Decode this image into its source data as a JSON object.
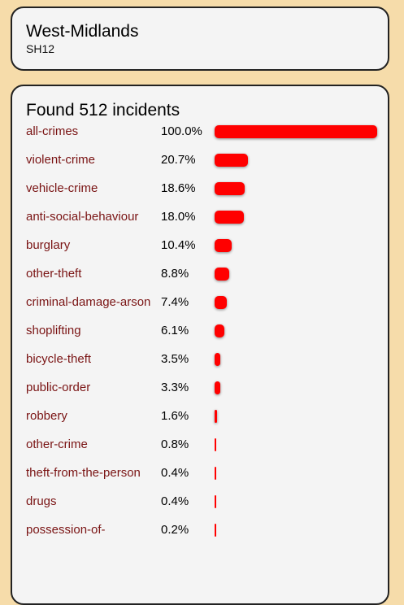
{
  "header": {
    "title": "West-Midlands",
    "subtitle": "SH12"
  },
  "results": {
    "found_text": "Found 512 incidents",
    "bar_color": "#ff0000",
    "link_color": "#7a1414",
    "items": [
      {
        "category": "all-crimes",
        "percent_text": "100.0%",
        "percent": 100.0
      },
      {
        "category": "violent-crime",
        "percent_text": "20.7%",
        "percent": 20.7
      },
      {
        "category": "vehicle-crime",
        "percent_text": "18.6%",
        "percent": 18.6
      },
      {
        "category": "anti-social-behaviour",
        "percent_text": "18.0%",
        "percent": 18.0
      },
      {
        "category": "burglary",
        "percent_text": "10.4%",
        "percent": 10.4
      },
      {
        "category": "other-theft",
        "percent_text": "8.8%",
        "percent": 8.8
      },
      {
        "category": "criminal-damage-arson",
        "percent_text": "7.4%",
        "percent": 7.4
      },
      {
        "category": "shoplifting",
        "percent_text": "6.1%",
        "percent": 6.1
      },
      {
        "category": "bicycle-theft",
        "percent_text": "3.5%",
        "percent": 3.5
      },
      {
        "category": "public-order",
        "percent_text": "3.3%",
        "percent": 3.3
      },
      {
        "category": "robbery",
        "percent_text": "1.6%",
        "percent": 1.6
      },
      {
        "category": "other-crime",
        "percent_text": "0.8%",
        "percent": 0.8
      },
      {
        "category": "theft-from-the-person",
        "percent_text": "0.4%",
        "percent": 0.4
      },
      {
        "category": "drugs",
        "percent_text": "0.4%",
        "percent": 0.4
      },
      {
        "category": "possession-of-",
        "percent_text": "0.2%",
        "percent": 0.2
      }
    ]
  }
}
